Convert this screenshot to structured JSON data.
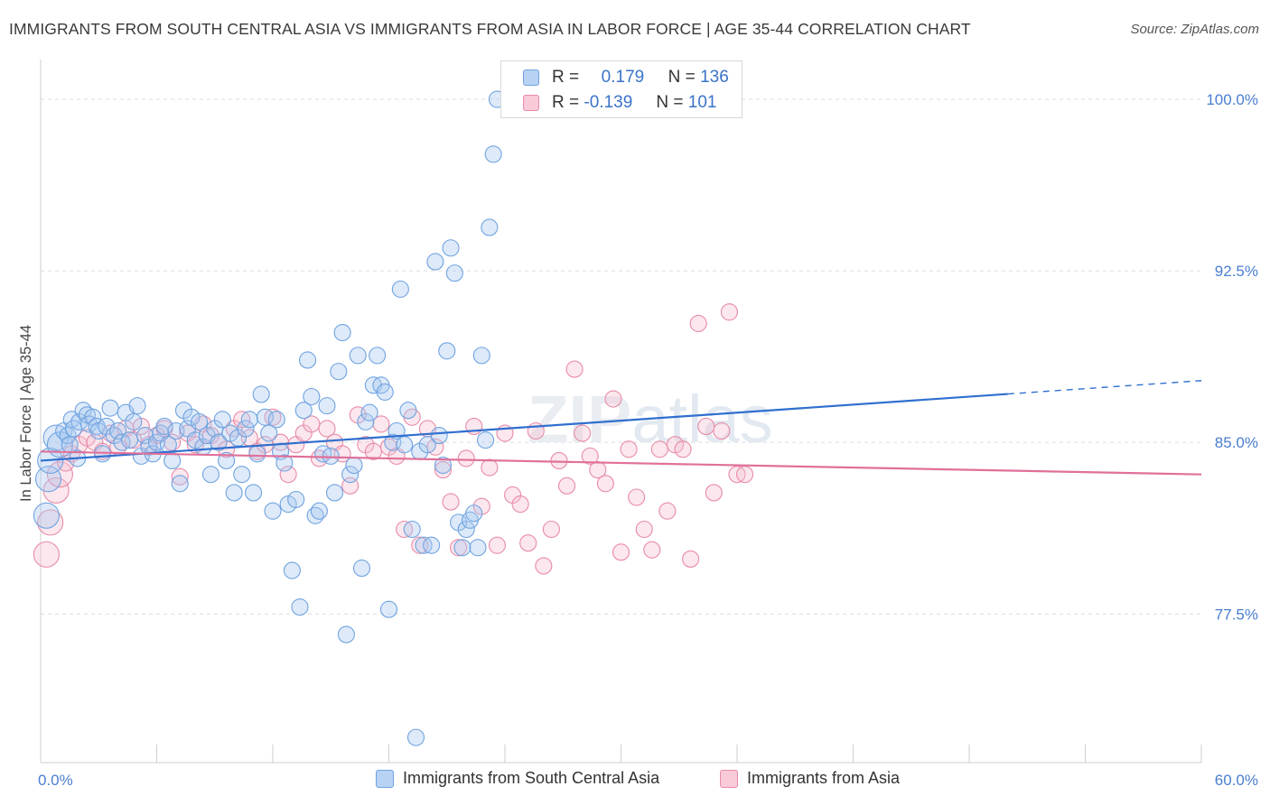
{
  "title": "IMMIGRANTS FROM SOUTH CENTRAL ASIA VS IMMIGRANTS FROM ASIA IN LABOR FORCE | AGE 35-44 CORRELATION CHART",
  "source": "Source: ZipAtlas.com",
  "legend": {
    "series1": {
      "r_label": "R =",
      "r_value": "0.179",
      "n_label": "N =",
      "n_value": "136"
    },
    "series2": {
      "r_label": "R =",
      "r_value": "-0.139",
      "n_label": "N =",
      "n_value": "101"
    }
  },
  "colors": {
    "blue": "#6fa3e0",
    "blue_fill": "#a9c8f0",
    "blue_line": "#2f6fcf",
    "pink": "#e88aa8",
    "pink_fill": "#f5bfd0",
    "pink_line": "#e0709a"
  },
  "chart_data": {
    "type": "scatter",
    "title": "IMMIGRANTS FROM SOUTH CENTRAL ASIA VS IMMIGRANTS FROM ASIA IN LABOR FORCE | AGE 35-44 CORRELATION CHART",
    "xlabel": "",
    "ylabel": "In Labor Force | Age 35-44",
    "xlim": [
      0,
      60
    ],
    "ylim": [
      71.0,
      101.5
    ],
    "x_tick_labels": [
      "0.0%",
      "60.0%"
    ],
    "y_ticks": [
      77.5,
      85.0,
      92.5,
      100.0
    ],
    "y_tick_labels": [
      "77.5%",
      "85.0%",
      "92.5%",
      "100.0%"
    ],
    "grid": true,
    "legend_position": "top-center",
    "series": [
      {
        "name": "Immigrants from South Central Asia",
        "trend": {
          "x0": 0,
          "y0": 84.2,
          "x1": 60,
          "y1": 87.7,
          "solid_until": 50
        },
        "points": [
          [
            0.3,
            81.8
          ],
          [
            0.4,
            83.4
          ],
          [
            0.5,
            84.2
          ],
          [
            0.8,
            85.2
          ],
          [
            1.0,
            84.9
          ],
          [
            1.2,
            85.5
          ],
          [
            1.4,
            85.3
          ],
          [
            1.5,
            84.9
          ],
          [
            1.6,
            86.0
          ],
          [
            1.7,
            85.6
          ],
          [
            1.9,
            84.3
          ],
          [
            2.0,
            85.9
          ],
          [
            2.2,
            86.4
          ],
          [
            2.4,
            86.2
          ],
          [
            2.5,
            85.8
          ],
          [
            2.7,
            86.1
          ],
          [
            2.9,
            85.7
          ],
          [
            3.0,
            85.5
          ],
          [
            3.2,
            84.5
          ],
          [
            3.4,
            85.7
          ],
          [
            3.6,
            86.5
          ],
          [
            3.8,
            85.3
          ],
          [
            4.0,
            85.5
          ],
          [
            4.2,
            85.0
          ],
          [
            4.4,
            86.3
          ],
          [
            4.6,
            85.1
          ],
          [
            4.8,
            85.9
          ],
          [
            5.0,
            86.6
          ],
          [
            5.2,
            84.4
          ],
          [
            5.4,
            85.3
          ],
          [
            5.6,
            84.8
          ],
          [
            5.8,
            84.5
          ],
          [
            6.0,
            85.0
          ],
          [
            6.2,
            85.4
          ],
          [
            6.4,
            85.7
          ],
          [
            6.6,
            84.9
          ],
          [
            6.8,
            84.2
          ],
          [
            7.0,
            85.5
          ],
          [
            7.2,
            83.2
          ],
          [
            7.4,
            86.4
          ],
          [
            7.6,
            85.6
          ],
          [
            7.8,
            86.1
          ],
          [
            8.0,
            85.1
          ],
          [
            8.2,
            85.9
          ],
          [
            8.4,
            84.8
          ],
          [
            8.6,
            85.3
          ],
          [
            8.8,
            83.6
          ],
          [
            9.0,
            85.6
          ],
          [
            9.2,
            85.0
          ],
          [
            9.4,
            86.0
          ],
          [
            9.6,
            84.2
          ],
          [
            9.8,
            85.4
          ],
          [
            10.0,
            82.8
          ],
          [
            10.2,
            85.2
          ],
          [
            10.4,
            83.6
          ],
          [
            10.6,
            85.6
          ],
          [
            10.8,
            86.0
          ],
          [
            11.0,
            82.8
          ],
          [
            11.2,
            84.5
          ],
          [
            11.4,
            87.1
          ],
          [
            11.6,
            86.1
          ],
          [
            11.8,
            85.4
          ],
          [
            12.0,
            82.0
          ],
          [
            12.2,
            86.0
          ],
          [
            12.4,
            84.6
          ],
          [
            12.6,
            84.1
          ],
          [
            12.8,
            82.3
          ],
          [
            13.0,
            79.4
          ],
          [
            13.2,
            82.5
          ],
          [
            13.4,
            77.8
          ],
          [
            13.6,
            86.4
          ],
          [
            13.8,
            88.6
          ],
          [
            14.0,
            87.0
          ],
          [
            14.2,
            81.8
          ],
          [
            14.4,
            82.0
          ],
          [
            14.6,
            84.5
          ],
          [
            14.8,
            86.6
          ],
          [
            15.0,
            84.4
          ],
          [
            15.2,
            82.8
          ],
          [
            15.4,
            88.1
          ],
          [
            15.6,
            89.8
          ],
          [
            15.8,
            76.6
          ],
          [
            16.0,
            83.6
          ],
          [
            16.2,
            84.0
          ],
          [
            16.4,
            88.8
          ],
          [
            16.6,
            79.5
          ],
          [
            16.8,
            85.9
          ],
          [
            17.0,
            86.3
          ],
          [
            17.2,
            87.5
          ],
          [
            17.4,
            88.8
          ],
          [
            17.6,
            87.5
          ],
          [
            17.8,
            87.2
          ],
          [
            18.0,
            77.7
          ],
          [
            18.2,
            85.0
          ],
          [
            18.4,
            85.5
          ],
          [
            18.6,
            91.7
          ],
          [
            18.8,
            84.9
          ],
          [
            19.0,
            86.4
          ],
          [
            19.2,
            81.2
          ],
          [
            19.4,
            72.1
          ],
          [
            19.6,
            84.6
          ],
          [
            19.8,
            80.5
          ],
          [
            20.0,
            84.9
          ],
          [
            20.2,
            80.5
          ],
          [
            20.4,
            92.9
          ],
          [
            20.6,
            85.3
          ],
          [
            20.8,
            84.0
          ],
          [
            21.0,
            89.0
          ],
          [
            21.2,
            93.5
          ],
          [
            21.4,
            92.4
          ],
          [
            21.6,
            81.5
          ],
          [
            21.8,
            80.4
          ],
          [
            22.0,
            81.2
          ],
          [
            22.2,
            81.6
          ],
          [
            22.4,
            81.9
          ],
          [
            22.6,
            80.4
          ],
          [
            22.8,
            88.8
          ],
          [
            23.0,
            85.1
          ],
          [
            23.2,
            94.4
          ],
          [
            23.4,
            97.6
          ],
          [
            23.6,
            100.0
          ]
        ]
      },
      {
        "name": "Immigrants from Asia",
        "trend": {
          "x0": 0,
          "y0": 84.6,
          "x1": 60,
          "y1": 83.6
        },
        "points": [
          [
            0.3,
            80.1
          ],
          [
            0.5,
            81.5
          ],
          [
            0.8,
            82.9
          ],
          [
            1.0,
            83.6
          ],
          [
            1.3,
            84.1
          ],
          [
            1.6,
            84.5
          ],
          [
            2.0,
            84.9
          ],
          [
            2.4,
            85.2
          ],
          [
            2.8,
            85.0
          ],
          [
            3.2,
            84.6
          ],
          [
            3.6,
            85.4
          ],
          [
            4.0,
            84.8
          ],
          [
            4.4,
            85.6
          ],
          [
            4.8,
            85.1
          ],
          [
            5.2,
            85.7
          ],
          [
            5.6,
            84.9
          ],
          [
            6.0,
            85.3
          ],
          [
            6.4,
            85.6
          ],
          [
            6.8,
            85.0
          ],
          [
            7.2,
            83.5
          ],
          [
            7.6,
            85.4
          ],
          [
            8.0,
            84.9
          ],
          [
            8.4,
            85.8
          ],
          [
            8.8,
            85.3
          ],
          [
            9.2,
            85.0
          ],
          [
            9.6,
            84.7
          ],
          [
            10.0,
            85.6
          ],
          [
            10.4,
            86.0
          ],
          [
            10.8,
            85.2
          ],
          [
            11.2,
            84.6
          ],
          [
            11.6,
            84.9
          ],
          [
            12.0,
            86.1
          ],
          [
            12.4,
            85.0
          ],
          [
            12.8,
            83.6
          ],
          [
            13.2,
            84.9
          ],
          [
            13.6,
            85.4
          ],
          [
            14.0,
            85.8
          ],
          [
            14.4,
            84.3
          ],
          [
            14.8,
            85.6
          ],
          [
            15.2,
            85.0
          ],
          [
            15.6,
            84.5
          ],
          [
            16.0,
            83.1
          ],
          [
            16.4,
            86.2
          ],
          [
            16.8,
            84.9
          ],
          [
            17.2,
            84.6
          ],
          [
            17.6,
            85.8
          ],
          [
            18.0,
            84.8
          ],
          [
            18.4,
            84.4
          ],
          [
            18.8,
            81.2
          ],
          [
            19.2,
            86.1
          ],
          [
            19.6,
            80.5
          ],
          [
            20.0,
            85.6
          ],
          [
            20.4,
            84.8
          ],
          [
            20.8,
            83.8
          ],
          [
            21.2,
            82.4
          ],
          [
            21.6,
            80.4
          ],
          [
            22.0,
            84.3
          ],
          [
            22.4,
            85.7
          ],
          [
            22.8,
            82.2
          ],
          [
            23.2,
            83.9
          ],
          [
            23.6,
            80.5
          ],
          [
            24.0,
            85.4
          ],
          [
            24.4,
            82.7
          ],
          [
            24.8,
            82.3
          ],
          [
            25.2,
            80.6
          ],
          [
            25.6,
            85.5
          ],
          [
            26.0,
            79.6
          ],
          [
            26.4,
            81.2
          ],
          [
            26.8,
            84.2
          ],
          [
            27.2,
            83.1
          ],
          [
            27.6,
            88.2
          ],
          [
            28.0,
            85.4
          ],
          [
            28.4,
            84.4
          ],
          [
            28.8,
            83.8
          ],
          [
            29.2,
            83.2
          ],
          [
            29.6,
            86.9
          ],
          [
            30.0,
            80.2
          ],
          [
            30.4,
            84.7
          ],
          [
            30.8,
            82.6
          ],
          [
            31.2,
            81.2
          ],
          [
            31.6,
            80.3
          ],
          [
            32.0,
            84.7
          ],
          [
            32.4,
            82.0
          ],
          [
            32.8,
            84.9
          ],
          [
            33.2,
            84.7
          ],
          [
            33.6,
            79.9
          ],
          [
            34.0,
            90.2
          ],
          [
            34.4,
            85.7
          ],
          [
            34.8,
            82.8
          ],
          [
            35.2,
            85.5
          ],
          [
            35.6,
            90.7
          ],
          [
            36.0,
            83.6
          ],
          [
            36.4,
            83.6
          ]
        ]
      }
    ]
  },
  "bottom_legend": {
    "series1_label": "Immigrants from South Central Asia",
    "series2_label": "Immigrants from Asia"
  }
}
